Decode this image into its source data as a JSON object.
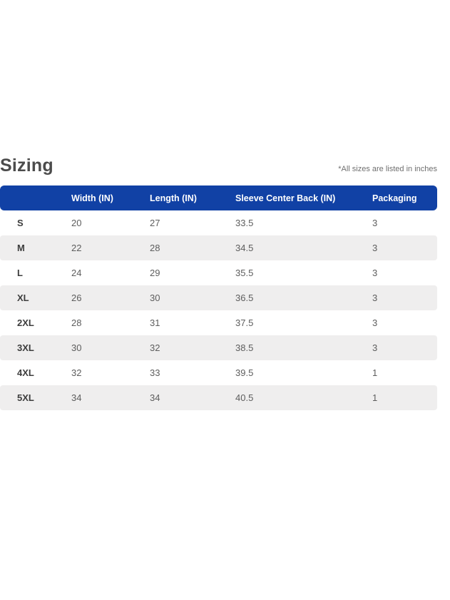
{
  "section": {
    "title": "Sizing",
    "note": "*All sizes are listed in inches"
  },
  "table": {
    "header_bg_color": "#1141a5",
    "alt_row_color": "#efeeee",
    "columns": [
      "",
      "Width (IN)",
      "Length (IN)",
      "Sleeve Center Back (IN)",
      "Packaging"
    ],
    "rows": [
      {
        "size": "S",
        "width": "20",
        "length": "27",
        "sleeve": "33.5",
        "packaging": "3"
      },
      {
        "size": "M",
        "width": "22",
        "length": "28",
        "sleeve": "34.5",
        "packaging": "3"
      },
      {
        "size": "L",
        "width": "24",
        "length": "29",
        "sleeve": "35.5",
        "packaging": "3"
      },
      {
        "size": "XL",
        "width": "26",
        "length": "30",
        "sleeve": "36.5",
        "packaging": "3"
      },
      {
        "size": "2XL",
        "width": "28",
        "length": "31",
        "sleeve": "37.5",
        "packaging": "3"
      },
      {
        "size": "3XL",
        "width": "30",
        "length": "32",
        "sleeve": "38.5",
        "packaging": "3"
      },
      {
        "size": "4XL",
        "width": "32",
        "length": "33",
        "sleeve": "39.5",
        "packaging": "1"
      },
      {
        "size": "5XL",
        "width": "34",
        "length": "34",
        "sleeve": "40.5",
        "packaging": "1"
      }
    ]
  }
}
